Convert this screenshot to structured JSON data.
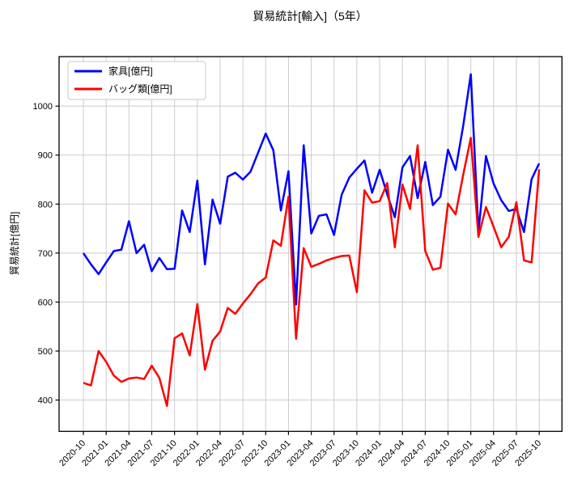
{
  "chart_data": {
    "type": "line",
    "title": "貿易統計[輸入]（5年）",
    "ylabel": "貿易統計[億円]",
    "grid": true,
    "legend_position": "upper-left",
    "ylim": [
      336,
      1101
    ],
    "y_ticks": [
      400,
      500,
      600,
      700,
      800,
      900,
      1000
    ],
    "x_tick_labels": [
      "2020-10",
      "2021-01",
      "2021-04",
      "2021-07",
      "2021-10",
      "2022-01",
      "2022-04",
      "2022-07",
      "2022-10",
      "2023-01",
      "2023-04",
      "2023-07",
      "2023-10",
      "2024-01",
      "2024-04",
      "2024-07",
      "2024-10",
      "2025-01",
      "2025-04",
      "2025-07",
      "2025-10"
    ],
    "x": [
      "2020-10",
      "2020-11",
      "2020-12",
      "2021-01",
      "2021-02",
      "2021-03",
      "2021-04",
      "2021-05",
      "2021-06",
      "2021-07",
      "2021-08",
      "2021-09",
      "2021-10",
      "2021-11",
      "2021-12",
      "2022-01",
      "2022-02",
      "2022-03",
      "2022-04",
      "2022-05",
      "2022-06",
      "2022-07",
      "2022-08",
      "2022-09",
      "2022-10",
      "2022-11",
      "2022-12",
      "2023-01",
      "2023-02",
      "2023-03",
      "2023-04",
      "2023-05",
      "2023-06",
      "2023-07",
      "2023-08",
      "2023-09",
      "2023-10",
      "2023-11",
      "2023-12",
      "2024-01",
      "2024-02",
      "2024-03",
      "2024-04",
      "2024-05",
      "2024-06",
      "2024-07",
      "2024-08",
      "2024-09",
      "2024-10",
      "2024-11",
      "2024-12",
      "2025-01",
      "2025-02",
      "2025-03",
      "2025-04",
      "2025-05",
      "2025-06",
      "2025-07",
      "2025-08",
      "2025-09",
      "2025-10"
    ],
    "series": [
      {
        "name": "家具[億円]",
        "color": "#0000ff",
        "values": [
          700,
          677,
          657,
          681,
          704,
          707,
          765,
          700,
          717,
          663,
          690,
          667,
          668,
          787,
          743,
          848,
          677,
          809,
          760,
          856,
          864,
          850,
          866,
          905,
          944,
          910,
          787,
          867,
          595,
          920,
          740,
          776,
          779,
          737,
          819,
          854,
          872,
          889,
          823,
          870,
          820,
          773,
          875,
          898,
          812,
          886,
          798,
          815,
          911,
          870,
          960,
          1065,
          743,
          898,
          842,
          808,
          786,
          790,
          743,
          851,
          883
        ]
      },
      {
        "name": "バッグ類[億円]",
        "color": "#ff0000",
        "values": [
          435,
          430,
          500,
          478,
          450,
          437,
          444,
          446,
          443,
          470,
          445,
          388,
          526,
          536,
          491,
          596,
          462,
          521,
          540,
          588,
          576,
          597,
          616,
          638,
          650,
          726,
          715,
          815,
          525,
          710,
          672,
          678,
          685,
          690,
          694,
          695,
          620,
          828,
          803,
          806,
          843,
          712,
          840,
          790,
          920,
          704,
          666,
          670,
          801,
          779,
          860,
          935,
          733,
          794,
          754,
          712,
          733,
          804,
          685,
          681,
          871
        ]
      }
    ]
  }
}
